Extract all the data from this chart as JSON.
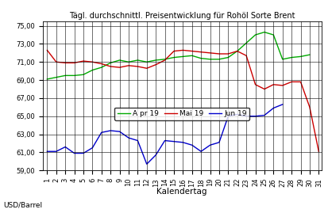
{
  "title": "Tägl. durchschnittl. Preisentwicklung für Rohöl Sorte Brent",
  "xlabel": "Kalendertag",
  "ylabel": "USD/Barrel",
  "ylim": [
    59.0,
    75.5
  ],
  "yticks": [
    59.0,
    61.0,
    63.0,
    65.0,
    67.0,
    69.0,
    71.0,
    73.0,
    75.0
  ],
  "ytick_labels": [
    "59,00",
    "61,00",
    "63,00",
    "65,00",
    "67,00",
    "69,00",
    "71,00",
    "73,00",
    "75,00"
  ],
  "xlim": [
    1,
    31
  ],
  "xticks": [
    1,
    2,
    3,
    4,
    5,
    6,
    7,
    8,
    9,
    10,
    11,
    12,
    13,
    14,
    15,
    16,
    17,
    18,
    19,
    20,
    21,
    22,
    23,
    24,
    25,
    26,
    27,
    28,
    29,
    30,
    31
  ],
  "apr_color": "#00aa00",
  "mai_color": "#cc0000",
  "jun_color": "#0000cc",
  "background_color": "#ffffff",
  "grid_color": "#000000",
  "apr_data": [
    [
      1,
      69.1
    ],
    [
      2,
      69.3
    ],
    [
      3,
      69.5
    ],
    [
      4,
      69.5
    ],
    [
      5,
      69.6
    ],
    [
      6,
      70.1
    ],
    [
      7,
      70.4
    ],
    [
      8,
      70.9
    ],
    [
      9,
      71.2
    ],
    [
      10,
      71.0
    ],
    [
      11,
      71.2
    ],
    [
      12,
      71.0
    ],
    [
      13,
      71.2
    ],
    [
      14,
      71.3
    ],
    [
      15,
      71.5
    ],
    [
      16,
      71.6
    ],
    [
      17,
      71.7
    ],
    [
      18,
      71.4
    ],
    [
      19,
      71.3
    ],
    [
      20,
      71.3
    ],
    [
      21,
      71.5
    ],
    [
      22,
      72.2
    ],
    [
      23,
      73.1
    ],
    [
      24,
      74.0
    ],
    [
      25,
      74.3
    ],
    [
      26,
      74.0
    ],
    [
      27,
      71.3
    ],
    [
      28,
      71.5
    ],
    [
      29,
      71.6
    ],
    [
      30,
      71.8
    ]
  ],
  "mai_data": [
    [
      1,
      72.3
    ],
    [
      2,
      71.0
    ],
    [
      3,
      70.9
    ],
    [
      4,
      70.9
    ],
    [
      5,
      71.1
    ],
    [
      6,
      71.0
    ],
    [
      7,
      70.8
    ],
    [
      8,
      70.5
    ],
    [
      9,
      70.4
    ],
    [
      10,
      70.6
    ],
    [
      11,
      70.5
    ],
    [
      12,
      70.3
    ],
    [
      13,
      70.7
    ],
    [
      14,
      71.2
    ],
    [
      15,
      72.2
    ],
    [
      16,
      72.3
    ],
    [
      17,
      72.2
    ],
    [
      18,
      72.1
    ],
    [
      19,
      72.0
    ],
    [
      20,
      71.9
    ],
    [
      21,
      71.9
    ],
    [
      22,
      72.2
    ],
    [
      23,
      71.7
    ],
    [
      24,
      68.5
    ],
    [
      25,
      68.0
    ],
    [
      26,
      68.5
    ],
    [
      27,
      68.4
    ],
    [
      28,
      68.8
    ],
    [
      29,
      68.8
    ],
    [
      30,
      66.0
    ],
    [
      31,
      61.1
    ]
  ],
  "jun_data": [
    [
      1,
      61.1
    ],
    [
      2,
      61.1
    ],
    [
      3,
      61.6
    ],
    [
      4,
      60.9
    ],
    [
      5,
      60.9
    ],
    [
      6,
      61.5
    ],
    [
      7,
      63.2
    ],
    [
      8,
      63.4
    ],
    [
      9,
      63.3
    ],
    [
      10,
      62.6
    ],
    [
      11,
      62.3
    ],
    [
      12,
      59.7
    ],
    [
      13,
      60.7
    ],
    [
      14,
      62.3
    ],
    [
      15,
      62.2
    ],
    [
      16,
      62.1
    ],
    [
      17,
      61.8
    ],
    [
      18,
      61.1
    ],
    [
      19,
      61.8
    ],
    [
      20,
      62.1
    ],
    [
      21,
      65.0
    ],
    [
      22,
      65.2
    ],
    [
      23,
      65.0
    ],
    [
      24,
      65.0
    ],
    [
      25,
      65.1
    ],
    [
      26,
      65.9
    ],
    [
      27,
      66.3
    ]
  ],
  "legend_labels": [
    "A pr 19",
    "Mai 19",
    "Jun 19"
  ],
  "title_fontsize": 7.0,
  "tick_fontsize": 6.0,
  "legend_fontsize": 6.5,
  "xlabel_fontsize": 7.5,
  "ylabel_fontsize": 6.5,
  "linewidth": 1.0
}
